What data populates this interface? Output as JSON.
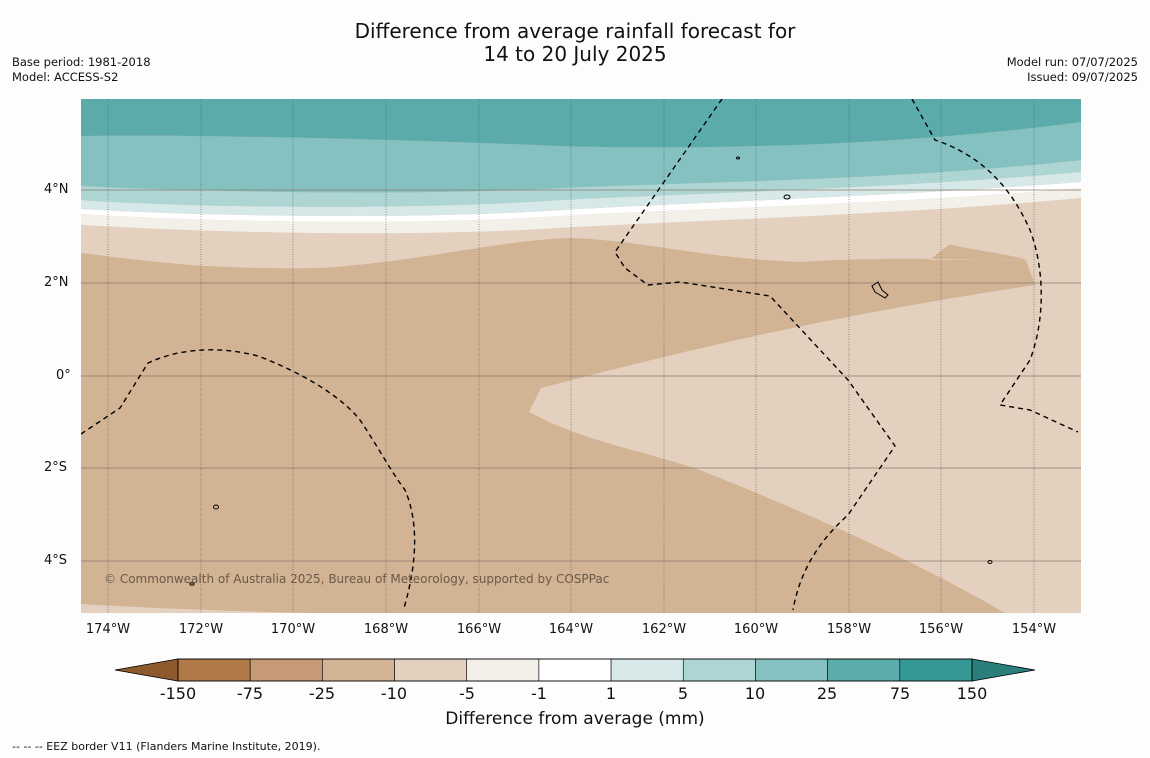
{
  "title_line1": "Difference from average rainfall forecast for",
  "title_line2": "14 to 20 July 2025",
  "meta_left": [
    "Base period: 1981-2018",
    "Model: ACCESS-S2"
  ],
  "meta_right": [
    "Model run: 07/07/2025",
    "Issued: 09/07/2025"
  ],
  "map": {
    "lat_labels": [
      "4°N",
      "2°N",
      "0°",
      "2°S",
      "4°S"
    ],
    "lon_labels": [
      "174°W",
      "172°W",
      "170°W",
      "168°W",
      "166°W",
      "164°W",
      "162°W",
      "160°W",
      "158°W",
      "156°W",
      "154°W"
    ],
    "copyright": "© Commonwealth of Australia 2025, Bureau of Meteorology, supported by COSPPac",
    "eez_line_color": "#000000"
  },
  "colorbar": {
    "title": "Difference from average (mm)",
    "ticks": [
      "-150",
      "-75",
      "-25",
      "-10",
      "-5",
      "-1",
      "1",
      "5",
      "10",
      "25",
      "75",
      "150"
    ],
    "colors": [
      "#8c5a2c",
      "#b07a48",
      "#c59a74",
      "#d2b394",
      "#e3d0bf",
      "#f3efe9",
      "#ffffff",
      "#d6e9e8",
      "#acd5d4",
      "#84c1c0",
      "#5babab",
      "#359895",
      "#2a7f7b"
    ]
  },
  "footnote": "--  --  -- EEZ border V11 (Flanders Marine Institute, 2019)."
}
